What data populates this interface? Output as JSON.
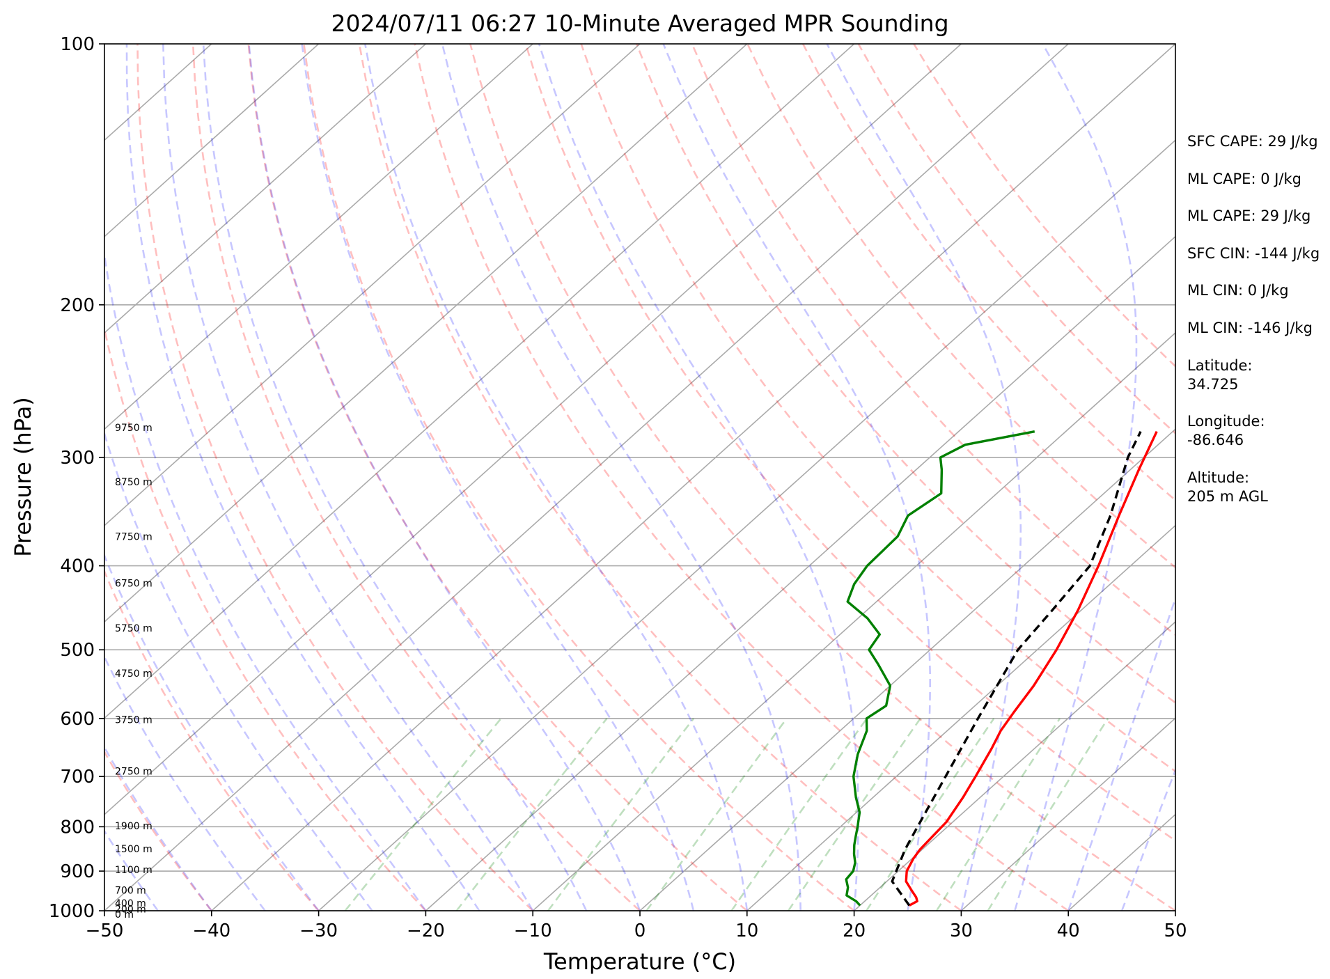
{
  "chart_data": {
    "type": "skew-t log-p sounding",
    "title": "2024/07/11 06:27 10-Minute Averaged MPR Sounding",
    "xlabel": "Temperature (°C)",
    "ylabel": "Pressure (hPa)",
    "xlim": [
      -50,
      50
    ],
    "ylim": [
      1000,
      100
    ],
    "y_scale": "log",
    "grid": true,
    "x_ticks": [
      -50,
      -40,
      -30,
      -20,
      -10,
      0,
      10,
      20,
      30,
      40,
      50
    ],
    "x_tick_labels": [
      "−50",
      "−40",
      "−30",
      "−20",
      "−10",
      "0",
      "10",
      "20",
      "30",
      "40",
      "50"
    ],
    "y_ticks": [
      1000,
      900,
      800,
      700,
      600,
      500,
      400,
      300,
      200,
      100
    ],
    "y_tick_labels": [
      "1000",
      "900",
      "800",
      "700",
      "600",
      "500",
      "400",
      "300",
      "200",
      "100"
    ],
    "series": [
      {
        "color": "#ff0000",
        "style": "solid",
        "points": [
          [
            986,
            24.6
          ],
          [
            975,
            24.9
          ],
          [
            965,
            24.4
          ],
          [
            945,
            23.1
          ],
          [
            925,
            21.8
          ],
          [
            900,
            20.8
          ],
          [
            870,
            20.1
          ],
          [
            850,
            19.8
          ],
          [
            820,
            19.6
          ],
          [
            790,
            19.4
          ],
          [
            740,
            18.4
          ],
          [
            700,
            17.4
          ],
          [
            650,
            16.0
          ],
          [
            620,
            15.0
          ],
          [
            590,
            14.3
          ],
          [
            550,
            13.4
          ],
          [
            500,
            11.8
          ],
          [
            450,
            9.7
          ],
          [
            400,
            7.0
          ],
          [
            350,
            3.7
          ],
          [
            310,
            0.8
          ],
          [
            280,
            -1.5
          ]
        ]
      },
      {
        "color": "#000000",
        "style": "dashed",
        "points": [
          [
            986,
            24.6
          ],
          [
            925,
            20.5
          ],
          [
            850,
            18.4
          ],
          [
            800,
            17.2
          ],
          [
            700,
            14.6
          ],
          [
            600,
            11.6
          ],
          [
            500,
            8.2
          ],
          [
            450,
            7.3
          ],
          [
            400,
            6.2
          ],
          [
            350,
            2.9
          ],
          [
            300,
            -1.5
          ],
          [
            280,
            -3.0
          ]
        ]
      },
      {
        "color": "#008000",
        "style": "solid",
        "points": [
          [
            986,
            20.0
          ],
          [
            975,
            19.2
          ],
          [
            960,
            17.7
          ],
          [
            940,
            17.0
          ],
          [
            920,
            16.0
          ],
          [
            900,
            15.8
          ],
          [
            880,
            15.1
          ],
          [
            860,
            14.1
          ],
          [
            840,
            13.2
          ],
          [
            820,
            12.4
          ],
          [
            800,
            11.6
          ],
          [
            770,
            10.3
          ],
          [
            740,
            8.4
          ],
          [
            700,
            6.0
          ],
          [
            660,
            4.1
          ],
          [
            620,
            2.5
          ],
          [
            600,
            1.2
          ],
          [
            580,
            1.7
          ],
          [
            550,
            0.0
          ],
          [
            520,
            -3.3
          ],
          [
            500,
            -5.7
          ],
          [
            480,
            -6.3
          ],
          [
            460,
            -9.1
          ],
          [
            440,
            -12.7
          ],
          [
            420,
            -13.9
          ],
          [
            400,
            -14.6
          ],
          [
            370,
            -14.8
          ],
          [
            350,
            -16.0
          ],
          [
            330,
            -15.2
          ],
          [
            310,
            -17.6
          ],
          [
            300,
            -19.0
          ],
          [
            290,
            -18.0
          ],
          [
            280,
            -12.9
          ]
        ]
      }
    ],
    "height_labels": [
      "9750 m",
      "8750 m",
      "7750 m",
      "6750 m",
      "5750 m",
      "4750 m",
      "3750 m",
      "2750 m",
      "1900 m",
      "1500 m",
      "1100 m",
      "700 m",
      "400 m",
      "200 m",
      "0 m"
    ],
    "height_label_pressures": [
      277,
      320,
      370,
      419,
      472,
      532,
      602,
      690,
      798,
      848,
      897,
      947,
      980,
      995,
      1009
    ]
  },
  "info_panel": {
    "sfc_cape": "SFC CAPE: 29 J/kg",
    "ml_cape_1": "ML CAPE: 0 J/kg",
    "ml_cape_2": "ML CAPE: 29 J/kg",
    "sfc_cin": "SFC CIN: -144 J/kg",
    "ml_cin_1": "ML CIN: 0 J/kg",
    "ml_cin_2": "ML CIN: -146 J/kg",
    "latitude_label": "Latitude:",
    "latitude_value": "34.725",
    "longitude_label": "Longitude:",
    "longitude_value": "-86.646",
    "altitude_label": "Altitude:",
    "altitude_value": "205 m AGL"
  }
}
